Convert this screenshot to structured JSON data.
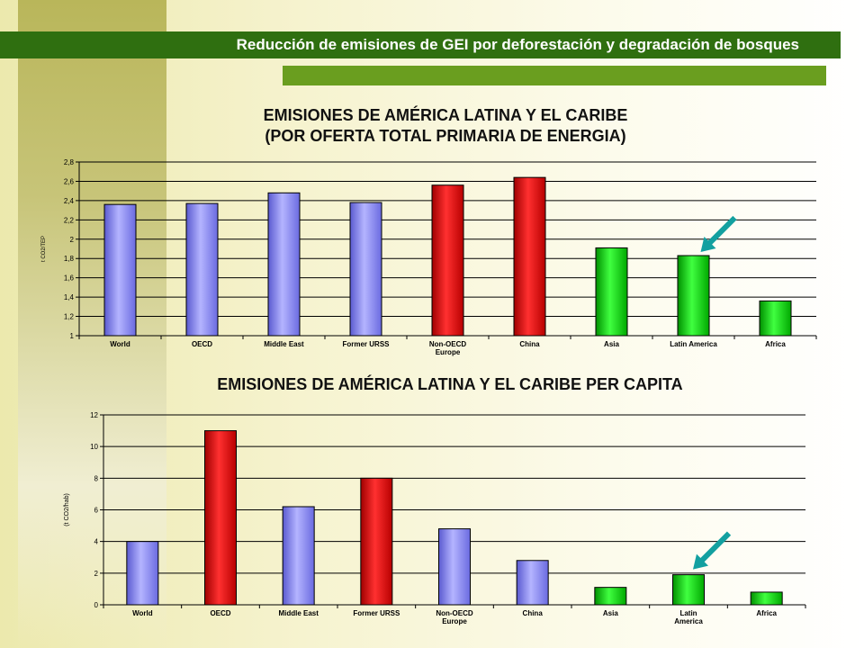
{
  "header": {
    "title": "Reducción de emisiones de GEI por deforestación y degradación de bosques"
  },
  "colors": {
    "header_bg": "#2f6f10",
    "accent_bar": "#6a9e1f",
    "blue": "#8080f0",
    "red": "#e00000",
    "green": "#00d000",
    "arrow": "#139a9a"
  },
  "chart_data": [
    {
      "type": "bar",
      "title": "EMISIONES DE AMÉRICA LATINA Y EL CARIBE",
      "subtitle": "(POR OFERTA TOTAL PRIMARIA DE ENERGIA)",
      "ylabel": "t CO2/TEP",
      "categories": [
        "World",
        "OECD",
        "Middle East",
        "Former URSS",
        "Non-OECD Europe",
        "China",
        "Asia",
        "Latin America",
        "Africa"
      ],
      "category_lines": [
        [
          "World"
        ],
        [
          "OECD"
        ],
        [
          "Middle East"
        ],
        [
          "Former URSS"
        ],
        [
          "Non-OECD",
          "Europe"
        ],
        [
          "China"
        ],
        [
          "Asia"
        ],
        [
          "Latin America"
        ],
        [
          "Africa"
        ]
      ],
      "values": [
        2.36,
        2.37,
        2.48,
        2.38,
        2.56,
        2.64,
        1.91,
        1.83,
        1.36
      ],
      "bar_colors": [
        "blue",
        "blue",
        "blue",
        "blue",
        "red",
        "red",
        "green",
        "green",
        "green"
      ],
      "ylim": [
        1,
        2.8
      ],
      "yticks": [
        "1",
        "1,2",
        "1,4",
        "1,6",
        "1,8",
        "2",
        "2,2",
        "2,4",
        "2,6",
        "2,8"
      ],
      "grid": true,
      "highlight": "Latin America"
    },
    {
      "type": "bar",
      "title": "EMISIONES DE AMÉRICA LATINA Y EL CARIBE PER CAPITA",
      "ylabel": "(t CO2/hab)",
      "categories": [
        "World",
        "OECD",
        "Middle East",
        "Former URSS",
        "Non-OECD Europe",
        "China",
        "Asia",
        "Latin America",
        "Africa"
      ],
      "category_lines": [
        [
          "World"
        ],
        [
          "OECD"
        ],
        [
          "Middle East"
        ],
        [
          "Former URSS"
        ],
        [
          "Non-OECD",
          "Europe"
        ],
        [
          "China"
        ],
        [
          "Asia"
        ],
        [
          "Latin",
          "America"
        ],
        [
          "Africa"
        ]
      ],
      "values": [
        4.0,
        11.0,
        6.2,
        8.0,
        4.8,
        2.8,
        1.1,
        1.9,
        0.8
      ],
      "bar_colors": [
        "blue",
        "red",
        "blue",
        "red",
        "blue",
        "blue",
        "green",
        "green",
        "green"
      ],
      "ylim": [
        0,
        12
      ],
      "yticks": [
        "0",
        "2",
        "4",
        "6",
        "8",
        "10",
        "12"
      ],
      "grid": true,
      "highlight": "Latin America"
    }
  ]
}
